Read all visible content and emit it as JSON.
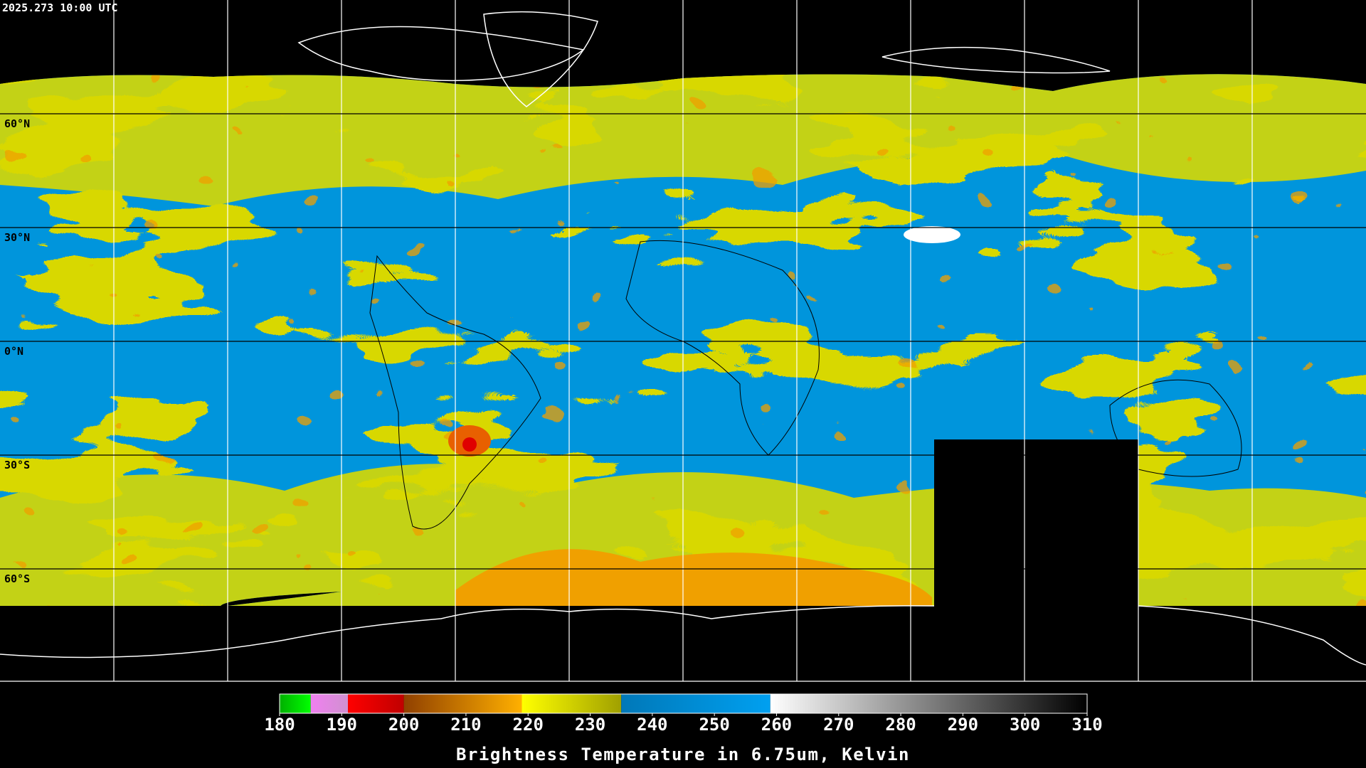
{
  "timestamp": "2025.273 10:00 UTC",
  "latitude_labels": [
    "60°N",
    "30°N",
    "0°N",
    "30°S",
    "60°S"
  ],
  "colorbar": {
    "title": "Brightness Temperature in 6.75um, Kelvin",
    "range": [
      180,
      310
    ],
    "ticks": [
      180,
      190,
      200,
      210,
      220,
      230,
      240,
      250,
      260,
      270,
      280,
      290,
      300,
      310
    ],
    "segments": [
      {
        "from": 180,
        "to": 185,
        "color_from": "#00b000",
        "color_to": "#00ff00"
      },
      {
        "from": 185,
        "to": 191,
        "color_from": "#f080f0",
        "color_to": "#d090d0"
      },
      {
        "from": 191,
        "to": 200,
        "color_from": "#ff0000",
        "color_to": "#c00000"
      },
      {
        "from": 200,
        "to": 219,
        "color_from": "#904000",
        "color_to": "#ffb000"
      },
      {
        "from": 219,
        "to": 235,
        "color_from": "#ffff00",
        "color_to": "#a0a000"
      },
      {
        "from": 235,
        "to": 259,
        "color_from": "#0078b8",
        "color_to": "#00a0f0"
      },
      {
        "from": 259,
        "to": 310,
        "color_from": "#ffffff",
        "color_to": "#000000"
      }
    ]
  }
}
